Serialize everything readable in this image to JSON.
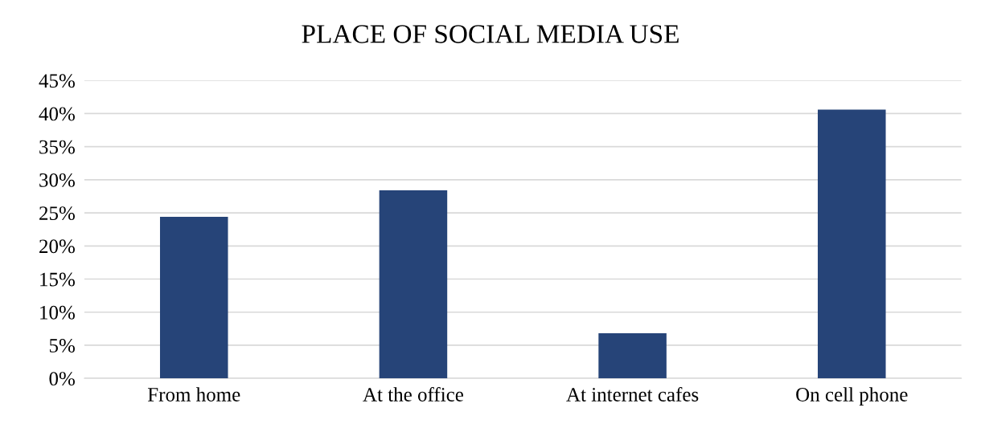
{
  "chart_data": {
    "type": "bar",
    "title": "PLACE OF SOCIAL MEDIA USE",
    "categories": [
      "From home",
      "At the office",
      "At internet cafes",
      "On cell phone"
    ],
    "values": [
      24.4,
      28.4,
      6.8,
      40.6
    ],
    "color": "#264478",
    "ylim": [
      0,
      45
    ],
    "yticks": [
      {
        "value": 0,
        "label": "0%"
      },
      {
        "value": 5,
        "label": "5%"
      },
      {
        "value": 10,
        "label": "10%"
      },
      {
        "value": 15,
        "label": "15%"
      },
      {
        "value": 20,
        "label": "20%"
      },
      {
        "value": 25,
        "label": "25%"
      },
      {
        "value": 30,
        "label": "30%"
      },
      {
        "value": 35,
        "label": "35%"
      },
      {
        "value": 40,
        "label": "40%"
      },
      {
        "value": 45,
        "label": "45%"
      }
    ],
    "grid": "y"
  }
}
